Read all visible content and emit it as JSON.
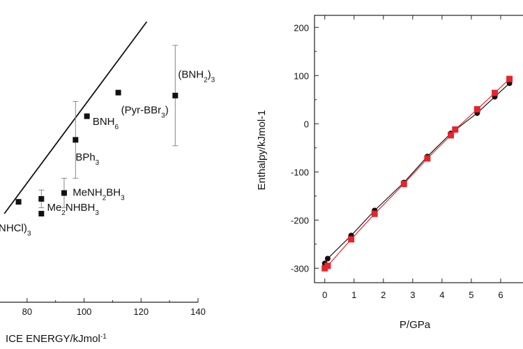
{
  "chart_data": [
    {
      "type": "scatter",
      "title": "",
      "xlabel": "ICE ENERGY/kJmol",
      "xlabel_sup": "-1",
      "ylabel": "",
      "xlim": [
        70,
        140
      ],
      "ylim": [
        0,
        100
      ],
      "x_ticks": [
        {
          "value": 80,
          "label": "80"
        },
        {
          "value": 100,
          "label": "100"
        },
        {
          "value": 120,
          "label": "120"
        },
        {
          "value": 140,
          "label": "140"
        }
      ],
      "points": [
        {
          "x": 77,
          "y": 34,
          "err": 0
        },
        {
          "x": 85,
          "y": 35,
          "err": 3
        },
        {
          "x": 85,
          "y": 30,
          "err": 0
        },
        {
          "x": 93,
          "y": 37,
          "err": 5
        },
        {
          "x": 97,
          "y": 55,
          "err": 13
        },
        {
          "x": 101,
          "y": 63,
          "err": 0
        },
        {
          "x": 112,
          "y": 71,
          "err": 0
        },
        {
          "x": 132,
          "y": 70,
          "err": 17
        }
      ],
      "fit_line": {
        "x": [
          72,
          122
        ],
        "y": [
          30,
          95
        ]
      },
      "annotations": [
        {
          "x": 133,
          "y": 76,
          "parts": [
            {
              "t": "(BNH"
            },
            {
              "t": "2",
              "sub": true
            },
            {
              "t": ")"
            },
            {
              "t": "3",
              "sub": true
            }
          ]
        },
        {
          "x": 113,
          "y": 64,
          "parts": [
            {
              "t": "(Pyr-BBr"
            },
            {
              "t": "3",
              "sub": true
            },
            {
              "t": ")"
            }
          ]
        },
        {
          "x": 103,
          "y": 60,
          "parts": [
            {
              "t": "BNH"
            },
            {
              "t": "6",
              "sub": true
            }
          ]
        },
        {
          "x": 97,
          "y": 48,
          "parts": [
            {
              "t": "BPh"
            },
            {
              "t": "3",
              "sub": true
            }
          ]
        },
        {
          "x": 96,
          "y": 36,
          "parts": [
            {
              "t": "MeNH"
            },
            {
              "t": "2",
              "sub": true
            },
            {
              "t": "BH"
            },
            {
              "t": "3",
              "sub": true
            }
          ]
        },
        {
          "x": 87,
          "y": 31,
          "parts": [
            {
              "t": "Me"
            },
            {
              "t": "2",
              "sub": true
            },
            {
              "t": "NHBH"
            },
            {
              "t": "3",
              "sub": true
            }
          ]
        },
        {
          "x": 70,
          "y": 24,
          "parts": [
            {
              "t": "NHCl)"
            },
            {
              "t": "3",
              "sub": true
            }
          ]
        }
      ]
    },
    {
      "type": "line",
      "title": "",
      "xlabel": "P/GPa",
      "ylabel": "Enthalpy/kJmol-1",
      "xlim": [
        -0.35,
        7
      ],
      "ylim": [
        -330,
        225
      ],
      "x_ticks": [
        0,
        1,
        2,
        3,
        4,
        5,
        6
      ],
      "y_ticks": [
        -300,
        -200,
        -100,
        0,
        100,
        200
      ],
      "series": [
        {
          "color": "#111111",
          "marker": "circle",
          "x": [
            0,
            0.1,
            0.9,
            1.7,
            2.7,
            3.5,
            4.3,
            4.45,
            5.2,
            5.8,
            6.3
          ],
          "y": [
            -290,
            -280,
            -232,
            -180,
            -122,
            -68,
            -20,
            -13,
            22,
            56,
            84
          ]
        },
        {
          "color": "#e8242a",
          "marker": "square",
          "x": [
            0,
            0.1,
            0.9,
            1.7,
            2.7,
            3.5,
            4.3,
            4.45,
            5.2,
            5.8,
            6.3
          ],
          "y": [
            -300,
            -295,
            -240,
            -187,
            -125,
            -72,
            -24,
            -12,
            30,
            64,
            93
          ]
        }
      ]
    }
  ]
}
